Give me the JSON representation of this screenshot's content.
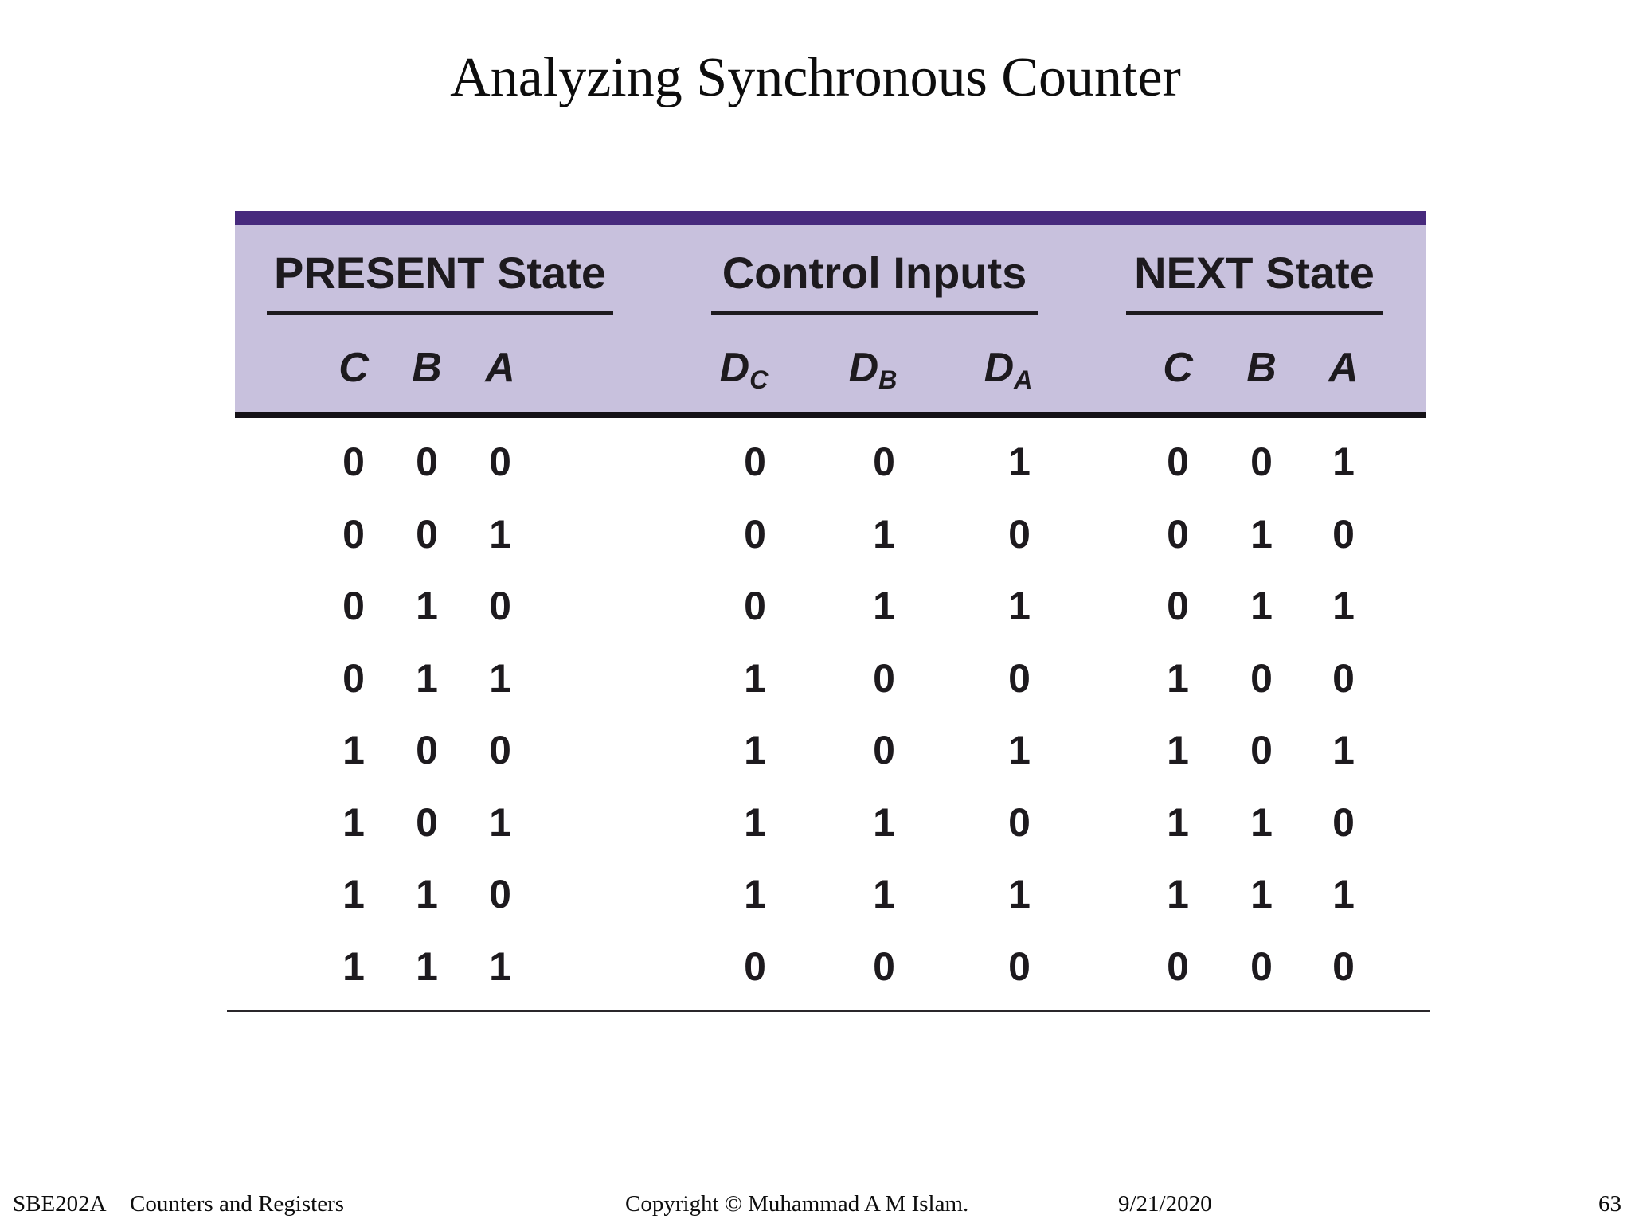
{
  "slide": {
    "title": "Analyzing Synchronous Counter"
  },
  "table": {
    "groups": [
      {
        "label": "PRESENT State"
      },
      {
        "label": "Control Inputs"
      },
      {
        "label": "NEXT State"
      }
    ],
    "columns": [
      {
        "base": "C",
        "sub": ""
      },
      {
        "base": "B",
        "sub": ""
      },
      {
        "base": "A",
        "sub": ""
      },
      {
        "base": "D",
        "sub": "C"
      },
      {
        "base": "D",
        "sub": "B"
      },
      {
        "base": "D",
        "sub": "A"
      },
      {
        "base": "C",
        "sub": ""
      },
      {
        "base": "B",
        "sub": ""
      },
      {
        "base": "A",
        "sub": ""
      }
    ],
    "rows": [
      [
        "0",
        "0",
        "0",
        "0",
        "0",
        "1",
        "0",
        "0",
        "1"
      ],
      [
        "0",
        "0",
        "1",
        "0",
        "1",
        "0",
        "0",
        "1",
        "0"
      ],
      [
        "0",
        "1",
        "0",
        "0",
        "1",
        "1",
        "0",
        "1",
        "1"
      ],
      [
        "0",
        "1",
        "1",
        "1",
        "0",
        "0",
        "1",
        "0",
        "0"
      ],
      [
        "1",
        "0",
        "0",
        "1",
        "0",
        "1",
        "1",
        "0",
        "1"
      ],
      [
        "1",
        "0",
        "1",
        "1",
        "1",
        "0",
        "1",
        "1",
        "0"
      ],
      [
        "1",
        "1",
        "0",
        "1",
        "1",
        "1",
        "1",
        "1",
        "1"
      ],
      [
        "1",
        "1",
        "1",
        "0",
        "0",
        "0",
        "0",
        "0",
        "0"
      ]
    ]
  },
  "footer": {
    "course_code": "SBE202A",
    "course_name": "Counters and Registers",
    "copyright": "Copyright © Muhammad A M Islam.",
    "date": "9/21/2020",
    "page_number": "63"
  },
  "colors": {
    "accent_bar": "#472a7d",
    "header_background": "#c8c1dd",
    "text": "#1d1a1e",
    "page_background": "#ffffff"
  }
}
